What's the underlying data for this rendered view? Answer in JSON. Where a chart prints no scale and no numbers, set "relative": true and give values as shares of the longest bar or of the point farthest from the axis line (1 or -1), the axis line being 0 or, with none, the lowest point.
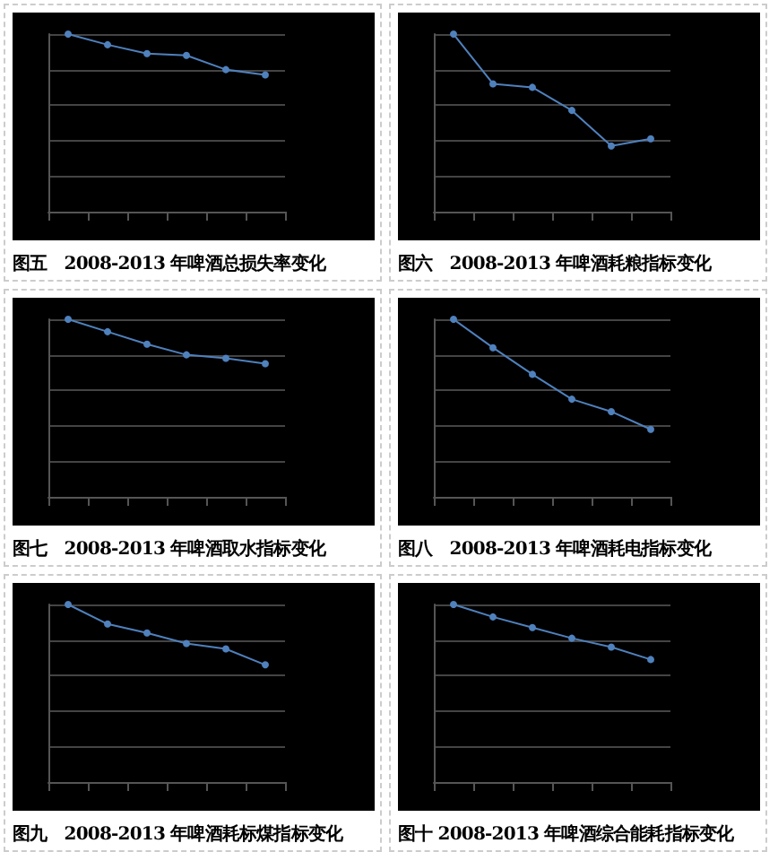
{
  "chart_data": [
    {
      "type": "line",
      "title": "图五　2008-2013 年啤酒总损失率变化",
      "relative": true,
      "categories": [
        null,
        null,
        null,
        null,
        null,
        null
      ],
      "series": [
        {
          "color": "#4f81bd",
          "values": [
            1,
            0.94,
            0.89,
            0.88,
            0.8,
            0.77
          ]
        }
      ],
      "grid": "y",
      "marker": "circle"
    },
    {
      "type": "line",
      "title": "图六　2008-2013 年啤酒耗粮指标变化",
      "relative": true,
      "categories": [
        null,
        null,
        null,
        null,
        null,
        null
      ],
      "series": [
        {
          "color": "#4f81bd",
          "values": [
            1,
            0.72,
            0.7,
            0.57,
            0.37,
            0.41
          ]
        }
      ],
      "grid": "y",
      "marker": "circle"
    },
    {
      "type": "line",
      "title": "图七　2008-2013 年啤酒取水指标变化",
      "relative": true,
      "categories": [
        null,
        null,
        null,
        null,
        null,
        null
      ],
      "series": [
        {
          "color": "#4f81bd",
          "values": [
            1,
            0.93,
            0.86,
            0.8,
            0.78,
            0.75
          ]
        }
      ],
      "grid": "y",
      "marker": "circle"
    },
    {
      "type": "line",
      "title": "图八　2008-2013 年啤酒耗电指标变化",
      "relative": true,
      "categories": [
        null,
        null,
        null,
        null,
        null,
        null
      ],
      "series": [
        {
          "color": "#4f81bd",
          "values": [
            1,
            0.84,
            0.69,
            0.55,
            0.48,
            0.38
          ]
        }
      ],
      "grid": "y",
      "marker": "circle"
    },
    {
      "type": "line",
      "title": "图九　2008-2013 年啤酒耗标煤指标变化",
      "relative": true,
      "categories": [
        null,
        null,
        null,
        null,
        null,
        null
      ],
      "series": [
        {
          "color": "#4f81bd",
          "values": [
            1,
            0.89,
            0.84,
            0.78,
            0.75,
            0.66
          ]
        }
      ],
      "grid": "y",
      "marker": "circle"
    },
    {
      "type": "line",
      "title": "图十 2008-2013 年啤酒综合能耗指标变化",
      "relative": true,
      "categories": [
        null,
        null,
        null,
        null,
        null,
        null
      ],
      "series": [
        {
          "color": "#4f81bd",
          "values": [
            1,
            0.93,
            0.87,
            0.81,
            0.76,
            0.69
          ]
        }
      ],
      "grid": "y",
      "marker": "circle"
    }
  ]
}
